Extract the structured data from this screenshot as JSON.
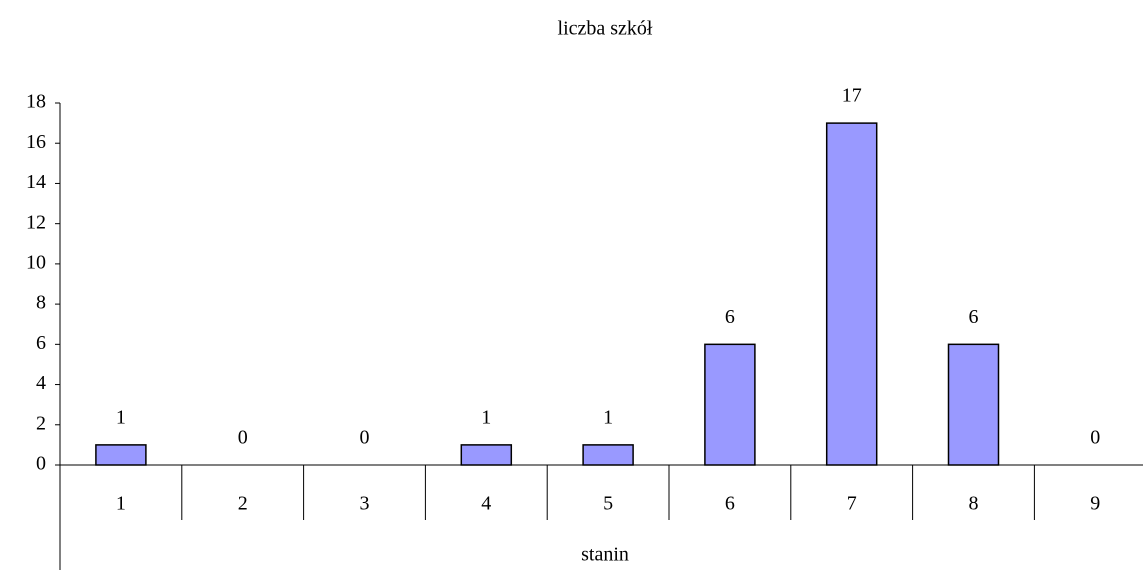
{
  "chart_data": {
    "type": "bar",
    "title": "liczba szkół",
    "x_label": "stanin",
    "categories": [
      "1",
      "2",
      "3",
      "4",
      "5",
      "6",
      "7",
      "8",
      "9"
    ],
    "values": [
      1,
      0,
      0,
      1,
      1,
      6,
      17,
      6,
      0
    ],
    "color": "#9999ff",
    "ylim": [
      0,
      18
    ],
    "yticks": [
      0,
      2,
      4,
      6,
      8,
      10,
      12,
      14,
      16,
      18
    ],
    "grid": false
  }
}
